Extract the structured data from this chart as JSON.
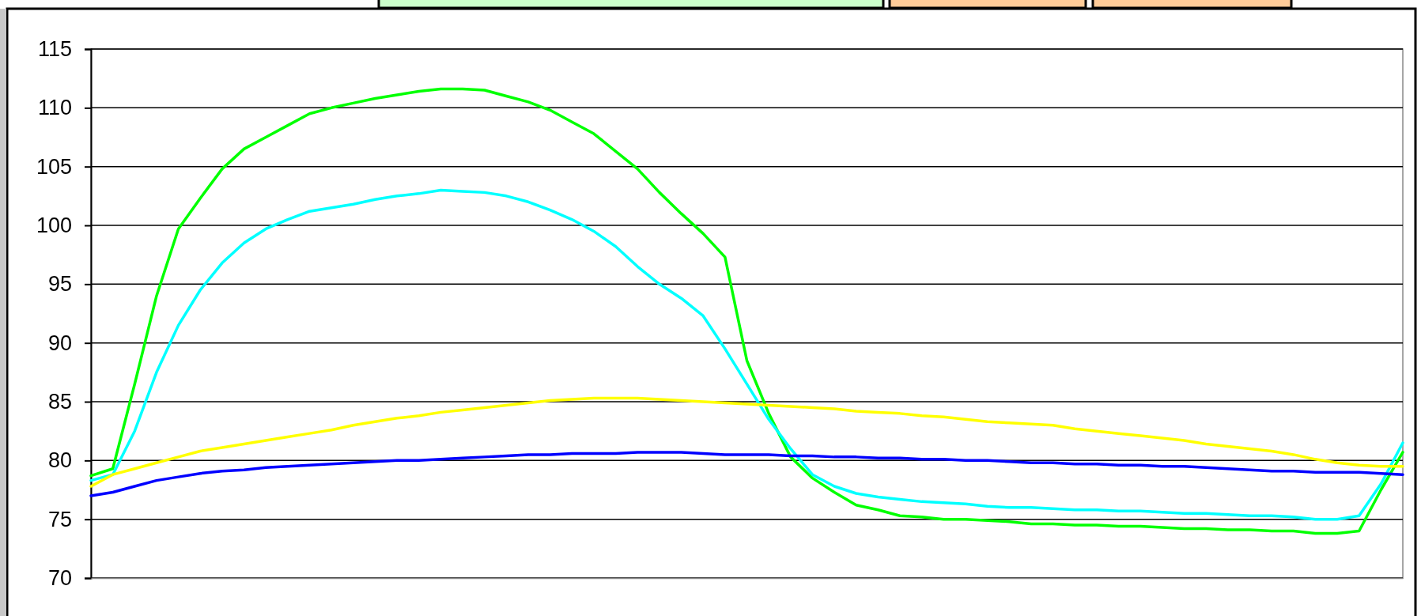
{
  "chart_data": {
    "type": "line",
    "categories": [
      null,
      null,
      null,
      null,
      null,
      null,
      null,
      null,
      null,
      null,
      null,
      null,
      null,
      null,
      null,
      null,
      null,
      null,
      null,
      null,
      null,
      null,
      null,
      null,
      null,
      null,
      null,
      null,
      null,
      null,
      null,
      null,
      null,
      null,
      null,
      null,
      null,
      null,
      null,
      null,
      null,
      null,
      null,
      null,
      null,
      null,
      null,
      null,
      null,
      null,
      null,
      null,
      null,
      null,
      null,
      null,
      null,
      null,
      null,
      null,
      null
    ],
    "ylim": [
      70,
      115
    ],
    "yticks": [
      70,
      75,
      80,
      85,
      90,
      95,
      100,
      105,
      110,
      115
    ],
    "grid": "y",
    "marker": "none",
    "line_style": "solid",
    "tick_labels": "y",
    "series": [
      {
        "color": "#00ff00",
        "values": [
          78.7,
          79.3,
          86.5,
          94,
          99.7,
          102.3,
          104.8,
          106.5,
          107.5,
          108.5,
          109.5,
          110,
          110.4,
          110.8,
          111.1,
          111.4,
          111.6,
          111.6,
          111.5,
          111,
          110.5,
          109.8,
          108.8,
          107.8,
          106.3,
          104.8,
          102.8,
          101,
          99.3,
          97.3,
          88.5,
          84,
          80.3,
          78.5,
          77.3,
          76.2,
          75.8,
          75.3,
          75.2,
          75,
          75,
          74.9,
          74.8,
          74.6,
          74.6,
          74.5,
          74.5,
          74.4,
          74.4,
          74.3,
          74.2,
          74.2,
          74.1,
          74.1,
          74,
          74,
          73.8,
          73.8,
          74,
          77.5,
          80.7
        ]
      },
      {
        "color": "#00ffff",
        "values": [
          78.3,
          78.8,
          82.5,
          87.5,
          91.5,
          94.5,
          96.8,
          98.5,
          99.7,
          100.5,
          101.2,
          101.5,
          101.8,
          102.2,
          102.5,
          102.7,
          103,
          102.9,
          102.8,
          102.5,
          102,
          101.3,
          100.5,
          99.5,
          98.2,
          96.5,
          95,
          93.8,
          92.3,
          89.5,
          86.5,
          83.5,
          81,
          78.8,
          77.8,
          77.2,
          76.9,
          76.7,
          76.5,
          76.4,
          76.3,
          76.1,
          76,
          76,
          75.9,
          75.8,
          75.8,
          75.7,
          75.7,
          75.6,
          75.5,
          75.5,
          75.4,
          75.3,
          75.3,
          75.2,
          75,
          75,
          75.3,
          78,
          81.5
        ]
      },
      {
        "color": "#ffff00",
        "values": [
          77.8,
          78.8,
          79.3,
          79.8,
          80.3,
          80.8,
          81.1,
          81.4,
          81.7,
          82,
          82.3,
          82.6,
          83,
          83.3,
          83.6,
          83.8,
          84.1,
          84.3,
          84.5,
          84.7,
          84.9,
          85.1,
          85.2,
          85.3,
          85.3,
          85.3,
          85.2,
          85.1,
          85,
          84.9,
          84.8,
          84.7,
          84.6,
          84.5,
          84.4,
          84.2,
          84.1,
          84,
          83.8,
          83.7,
          83.5,
          83.3,
          83.2,
          83.1,
          83,
          82.7,
          82.5,
          82.3,
          82.1,
          81.9,
          81.7,
          81.4,
          81.2,
          81,
          80.8,
          80.5,
          80.1,
          79.8,
          79.6,
          79.5,
          79.5
        ]
      },
      {
        "color": "#0000ff",
        "values": [
          77,
          77.3,
          77.8,
          78.3,
          78.6,
          78.9,
          79.1,
          79.2,
          79.4,
          79.5,
          79.6,
          79.7,
          79.8,
          79.9,
          80,
          80,
          80.1,
          80.2,
          80.3,
          80.4,
          80.5,
          80.5,
          80.6,
          80.6,
          80.6,
          80.7,
          80.7,
          80.7,
          80.6,
          80.5,
          80.5,
          80.5,
          80.4,
          80.4,
          80.3,
          80.3,
          80.2,
          80.2,
          80.1,
          80.1,
          80,
          80,
          79.9,
          79.8,
          79.8,
          79.7,
          79.7,
          79.6,
          79.6,
          79.5,
          79.5,
          79.4,
          79.3,
          79.2,
          79.1,
          79.1,
          79,
          79,
          79,
          78.9,
          78.8
        ]
      }
    ]
  }
}
